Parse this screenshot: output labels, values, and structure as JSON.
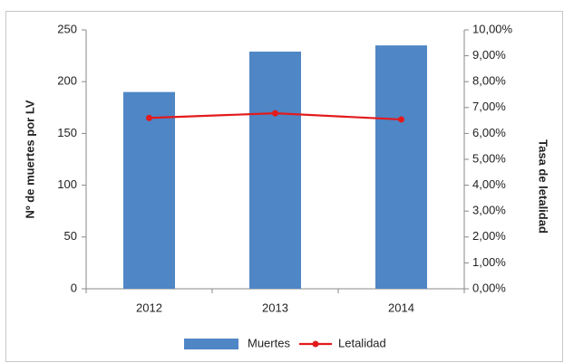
{
  "chart_data": {
    "type": "bar",
    "categories": [
      "2012",
      "2013",
      "2014"
    ],
    "series": [
      {
        "name": "Muertes",
        "type": "bar",
        "color": "#4f86c6",
        "values": [
          190,
          229,
          235
        ]
      },
      {
        "name": "Letalidad",
        "type": "line",
        "axis": "y2",
        "color": "#e31a1c",
        "values": [
          6.6,
          6.78,
          6.54
        ]
      }
    ],
    "y_label": "Nº de muertes por LV",
    "y2_label": "Tasa de letalidad",
    "ylim": [
      0,
      250
    ],
    "yticks": [
      0,
      50,
      100,
      150,
      200,
      250
    ],
    "y2lim": [
      0,
      10
    ],
    "y2ticks": [
      {
        "value": 0,
        "label": "0,00%"
      },
      {
        "value": 1,
        "label": "1,00%"
      },
      {
        "value": 2,
        "label": "2,00%"
      },
      {
        "value": 3,
        "label": "3,00%"
      },
      {
        "value": 4,
        "label": "4,00%"
      },
      {
        "value": 5,
        "label": "5,00%"
      },
      {
        "value": 6,
        "label": "6,00%"
      },
      {
        "value": 7,
        "label": "7,00%"
      },
      {
        "value": 8,
        "label": "8,00%"
      },
      {
        "value": 9,
        "label": "9,00%"
      },
      {
        "value": 10,
        "label": "10,00%"
      }
    ],
    "grid": false,
    "legend": "bottom"
  }
}
